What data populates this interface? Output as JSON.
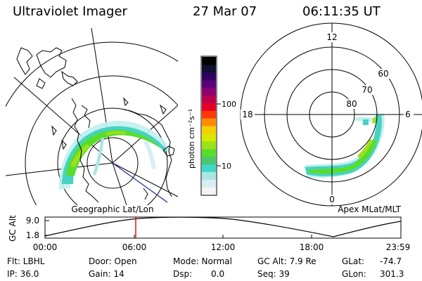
{
  "header": {
    "instrument": "Ultraviolet Imager",
    "date": "27 Mar 07",
    "time": "06:11:35 UT"
  },
  "colorbar": {
    "label": "photon cm⁻²s⁻¹",
    "ticks": [
      "100",
      "10"
    ],
    "colors": [
      "#f4f4f4",
      "#d8eef2",
      "#a8e6e2",
      "#40d8c8",
      "#48c870",
      "#58dd2c",
      "#9ce018",
      "#d8e800",
      "#f4d000",
      "#ff8c00",
      "#ff3a00",
      "#e80028",
      "#bc0050",
      "#8c0070",
      "#5a0078",
      "#300060",
      "#101030",
      "#000000"
    ]
  },
  "left_panel": {
    "caption": "Geographic Lat/Lon"
  },
  "right_panel": {
    "caption": "Apex MLat/MLT",
    "mlt_labels": {
      "top": "12",
      "left": "18",
      "right": "6",
      "bottom": "0"
    },
    "lat_labels": [
      "60",
      "70",
      "80"
    ]
  },
  "altitude_plot": {
    "ylabel": "GC Alt",
    "yticks": [
      "9.0",
      "1.8"
    ],
    "xticks": [
      "00:00",
      "06:00",
      "12:00",
      "18:00",
      "23:59"
    ],
    "marker_time": "06:11:35",
    "marker_color": "#e00000"
  },
  "footer": {
    "flt": "Flt: LBHL",
    "ip": "IP: 36.0",
    "door": "Door: Open",
    "gain": "Gain: 14",
    "mode": "Mode: Normal",
    "dsp_label": "Dsp:",
    "dsp_value": "0.0",
    "gcalt": "GC Alt: 7.9 Re",
    "seq": "Seq: 39",
    "glat_label": "GLat:",
    "glat_value": "-74.7",
    "glon_label": "GLon:",
    "glon_value": "301.3"
  }
}
